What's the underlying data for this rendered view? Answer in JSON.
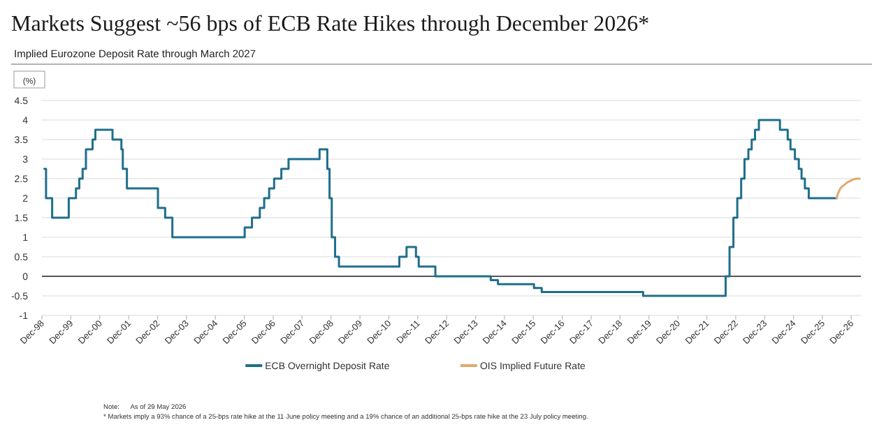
{
  "chart_data": {
    "type": "step",
    "title": "Markets Suggest ~56 bps of ECB Rate Hikes through December 2026*",
    "subtitle": "Implied Eurozone Deposit Rate through March 2027",
    "ylabel": "(%)",
    "series": [
      {
        "name": "ECB Overnight Deposit Rate",
        "color": "#1f6e8c",
        "x": [
          "1999-01-01",
          "1999-01-22",
          "1999-04-09",
          "1999-11-05",
          "2000-02-04",
          "2000-03-17",
          "2000-04-28",
          "2000-06-09",
          "2000-09-01",
          "2000-10-06",
          "2001-05-11",
          "2001-08-31",
          "2001-09-18",
          "2001-11-09",
          "2002-12-06",
          "2003-03-07",
          "2003-06-06",
          "2005-12-06",
          "2006-03-08",
          "2006-06-15",
          "2006-08-09",
          "2006-10-11",
          "2006-12-13",
          "2007-03-14",
          "2007-06-13",
          "2008-07-09",
          "2008-10-15",
          "2008-11-12",
          "2008-12-10",
          "2009-01-21",
          "2009-03-11",
          "2009-04-08",
          "2011-04-13",
          "2011-07-13",
          "2011-11-09",
          "2011-12-14",
          "2012-07-11",
          "2014-06-11",
          "2014-09-10",
          "2015-12-09",
          "2016-03-16",
          "2019-09-18",
          "2022-07-27",
          "2022-09-14",
          "2022-11-02",
          "2022-12-21",
          "2023-02-08",
          "2023-03-22",
          "2023-05-10",
          "2023-06-21",
          "2023-08-02",
          "2023-09-20",
          "2024-06-12",
          "2024-09-18",
          "2024-10-23",
          "2024-12-18",
          "2025-02-05",
          "2025-03-12",
          "2025-04-23",
          "2025-06-11",
          "2026-05-29"
        ],
        "values": [
          2.75,
          2,
          1.5,
          2,
          2.25,
          2.5,
          2.75,
          3.25,
          3.5,
          3.75,
          3.5,
          3.25,
          2.75,
          2.25,
          1.75,
          1.5,
          1,
          1.25,
          1.5,
          1.75,
          2,
          2.25,
          2.5,
          2.75,
          3,
          3.25,
          2.75,
          2,
          1,
          0.5,
          0.25,
          0.25,
          0.5,
          0.75,
          0.5,
          0.25,
          0,
          -0.1,
          -0.2,
          -0.3,
          -0.4,
          -0.5,
          0,
          0.75,
          1.5,
          2,
          2.5,
          3,
          3.25,
          3.5,
          3.75,
          4,
          3.75,
          3.5,
          3.25,
          3,
          2.75,
          2.5,
          2.25,
          2,
          2
        ]
      },
      {
        "name": "OIS Implied Future Rate",
        "color": "#e0a96d",
        "type": "line",
        "x": [
          "2026-05-29",
          "2026-06-15",
          "2026-07-15",
          "2026-08-15",
          "2026-09-15",
          "2026-10-15",
          "2026-11-15",
          "2026-12-15",
          "2027-01-15",
          "2027-02-15",
          "2027-03-15"
        ],
        "values": [
          2,
          2.12,
          2.25,
          2.31,
          2.36,
          2.41,
          2.44,
          2.47,
          2.49,
          2.5,
          2.5
        ]
      }
    ],
    "xlim": [
      "1998-12-01",
      "2027-03-31"
    ],
    "xticks": [
      {
        "value": "1998-12",
        "label": "Dec-98"
      },
      {
        "value": "1999-12",
        "label": "Dec-99"
      },
      {
        "value": "2000-12",
        "label": "Dec-00"
      },
      {
        "value": "2001-12",
        "label": "Dec-01"
      },
      {
        "value": "2002-12",
        "label": "Dec-02"
      },
      {
        "value": "2003-12",
        "label": "Dec-03"
      },
      {
        "value": "2004-12",
        "label": "Dec-04"
      },
      {
        "value": "2005-12",
        "label": "Dec-05"
      },
      {
        "value": "2006-12",
        "label": "Dec-06"
      },
      {
        "value": "2007-12",
        "label": "Dec-07"
      },
      {
        "value": "2008-12",
        "label": "Dec-08"
      },
      {
        "value": "2009-12",
        "label": "Dec-09"
      },
      {
        "value": "2010-12",
        "label": "Dec-10"
      },
      {
        "value": "2011-12",
        "label": "Dec-11"
      },
      {
        "value": "2012-12",
        "label": "Dec-12"
      },
      {
        "value": "2013-12",
        "label": "Dec-13"
      },
      {
        "value": "2014-12",
        "label": "Dec-14"
      },
      {
        "value": "2015-12",
        "label": "Dec-15"
      },
      {
        "value": "2016-12",
        "label": "Dec-16"
      },
      {
        "value": "2017-12",
        "label": "Dec-17"
      },
      {
        "value": "2018-12",
        "label": "Dec-18"
      },
      {
        "value": "2019-12",
        "label": "Dec-19"
      },
      {
        "value": "2020-12",
        "label": "Dec-20"
      },
      {
        "value": "2021-12",
        "label": "Dec-21"
      },
      {
        "value": "2022-12",
        "label": "Dec-22"
      },
      {
        "value": "2023-12",
        "label": "Dec-23"
      },
      {
        "value": "2024-12",
        "label": "Dec-24"
      },
      {
        "value": "2025-12",
        "label": "Dec-25"
      },
      {
        "value": "2026-12",
        "label": "Dec-26"
      }
    ],
    "ylim": [
      -1,
      4.5
    ],
    "yticks": [
      -1,
      -0.5,
      0,
      0.5,
      1,
      1.5,
      2,
      2.5,
      3,
      3.5,
      4,
      4.5
    ],
    "ref_lines": [
      {
        "axis": "y",
        "value": 0,
        "color": "#555555"
      }
    ],
    "grid": "y",
    "legend": "bottom",
    "annotations": [
      "Note:      As of 29 May 2026",
      "* Markets imply a 93% chance of a 25-bps rate hike at the 11 June policy meeting and a 19% chance of an additional 25-bps rate hike at the 23 July policy meeting."
    ]
  }
}
